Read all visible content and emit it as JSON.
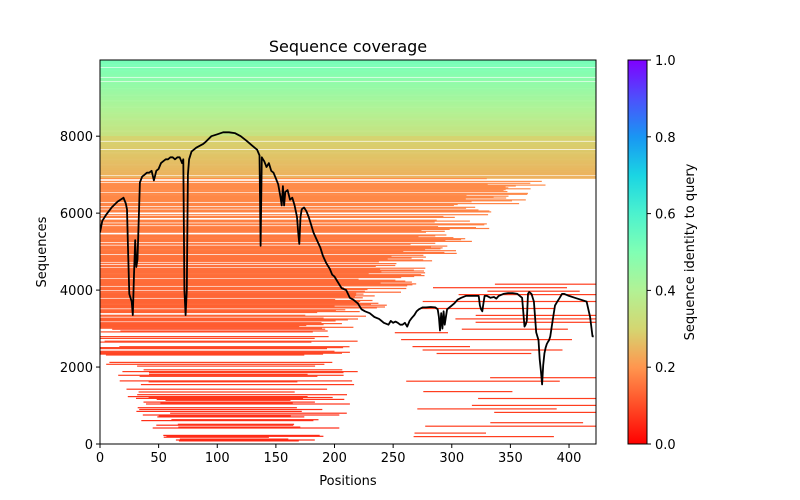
{
  "chart_data": {
    "type": "heatmap",
    "title": "Sequence coverage",
    "xlabel": "Positions",
    "ylabel": "Sequences",
    "xlim": [
      0,
      423
    ],
    "ylim": [
      0,
      9980
    ],
    "xticks": [
      0,
      50,
      100,
      150,
      200,
      250,
      300,
      350,
      400
    ],
    "yticks": [
      0,
      2000,
      4000,
      6000,
      8000
    ],
    "grid": false,
    "colorbar": {
      "label": "Sequence identity to query",
      "range": [
        0.0,
        1.0
      ],
      "ticks": [
        "0.0",
        "0.2",
        "0.4",
        "0.6",
        "0.8",
        "1.0"
      ],
      "colormap": "rainbow_r",
      "stops": [
        {
          "v": 0.0,
          "color": "#ff0000"
        },
        {
          "v": 0.1,
          "color": "#ff4d27"
        },
        {
          "v": 0.2,
          "color": "#ff964f"
        },
        {
          "v": 0.3,
          "color": "#d4d671"
        },
        {
          "v": 0.4,
          "color": "#b2f295"
        },
        {
          "v": 0.5,
          "color": "#80ffb4"
        },
        {
          "v": 0.6,
          "color": "#4cf2ce"
        },
        {
          "v": 0.7,
          "color": "#1ad5e3"
        },
        {
          "v": 0.8,
          "color": "#1996f3"
        },
        {
          "v": 0.9,
          "color": "#4d50fc"
        },
        {
          "v": 1.0,
          "color": "#8000ff"
        }
      ]
    },
    "identity_bands": [
      {
        "y_from": 8000,
        "y_to": 9980,
        "identity_from": 0.34,
        "identity_to": 0.52
      },
      {
        "y_from": 6900,
        "y_to": 8000,
        "identity_from": 0.24,
        "identity_to": 0.3
      },
      {
        "y_from": 3000,
        "y_to": 6900,
        "identity_from": 0.12,
        "identity_to": 0.19
      },
      {
        "y_from": 0,
        "y_to": 3000,
        "identity_from": 0.05,
        "identity_to": 0.1
      }
    ],
    "coverage_line": {
      "name": "coverage",
      "color": "#000000",
      "x": [
        0,
        2,
        5,
        10,
        15,
        20,
        22,
        23,
        24,
        25,
        26,
        27,
        28,
        29,
        30,
        31,
        32,
        34,
        36,
        38,
        40,
        42,
        44,
        46,
        48,
        50,
        52,
        54,
        56,
        58,
        60,
        62,
        64,
        66,
        68,
        70,
        71,
        72,
        73,
        74,
        75,
        76,
        78,
        80,
        82,
        85,
        88,
        90,
        95,
        100,
        105,
        110,
        115,
        120,
        125,
        130,
        134,
        136,
        137,
        138,
        139,
        140,
        142,
        144,
        146,
        148,
        150,
        152,
        154,
        155,
        156,
        157,
        158,
        160,
        162,
        164,
        166,
        168,
        169,
        170,
        171,
        172,
        174,
        176,
        178,
        180,
        182,
        185,
        188,
        190,
        193,
        196,
        198,
        200,
        203,
        206,
        210,
        213,
        216,
        220,
        223,
        226,
        230,
        234,
        238,
        242,
        246,
        248,
        250,
        252,
        254,
        256,
        258,
        260,
        262,
        264,
        266,
        268,
        270,
        272,
        275,
        278,
        282,
        286,
        288,
        289,
        290,
        291,
        292,
        293,
        294,
        296,
        298,
        300,
        302,
        305,
        308,
        312,
        316,
        320,
        323,
        324,
        325,
        326,
        327,
        328,
        330,
        333,
        336,
        338,
        340,
        344,
        348,
        352,
        356,
        360,
        362,
        363,
        364,
        365,
        366,
        368,
        370,
        372,
        374,
        375,
        376,
        377,
        378,
        379,
        380,
        381,
        382,
        383,
        384,
        386,
        388,
        390,
        392,
        394,
        396,
        400,
        405,
        410,
        415,
        418,
        420,
        421,
        422
      ],
      "y": [
        5500,
        5800,
        5950,
        6150,
        6300,
        6400,
        6250,
        6100,
        5000,
        3900,
        3800,
        3700,
        3350,
        4400,
        5300,
        4600,
        4800,
        6800,
        6950,
        7000,
        7050,
        7050,
        7100,
        6850,
        7100,
        7150,
        7300,
        7350,
        7400,
        7400,
        7450,
        7450,
        7400,
        7450,
        7450,
        7300,
        7400,
        4000,
        3350,
        4000,
        7000,
        7400,
        7600,
        7650,
        7700,
        7750,
        7800,
        7850,
        8000,
        8050,
        8100,
        8100,
        8080,
        8000,
        7880,
        7750,
        7650,
        7500,
        5150,
        7450,
        7400,
        7350,
        7200,
        7300,
        7100,
        7050,
        6900,
        6750,
        6400,
        6200,
        6700,
        6200,
        6550,
        6600,
        6350,
        6400,
        6200,
        5900,
        5500,
        5200,
        5900,
        6100,
        6150,
        6050,
        5900,
        5700,
        5500,
        5300,
        5100,
        4900,
        4700,
        4550,
        4400,
        4350,
        4200,
        4050,
        4000,
        3800,
        3750,
        3650,
        3500,
        3450,
        3400,
        3300,
        3250,
        3150,
        3100,
        3200,
        3150,
        3180,
        3150,
        3100,
        3100,
        3150,
        3050,
        3200,
        3280,
        3350,
        3450,
        3500,
        3550,
        3550,
        3560,
        3550,
        3500,
        3300,
        2950,
        3400,
        3000,
        3450,
        3100,
        3500,
        3550,
        3600,
        3650,
        3750,
        3800,
        3850,
        3850,
        3850,
        3850,
        3600,
        3500,
        3450,
        3650,
        3850,
        3850,
        3800,
        3820,
        3780,
        3850,
        3900,
        3920,
        3920,
        3900,
        3800,
        3050,
        3100,
        3200,
        3900,
        3950,
        3900,
        3700,
        2900,
        2700,
        2200,
        1900,
        1550,
        2050,
        2350,
        2500,
        2600,
        2650,
        2700,
        2800,
        3200,
        3600,
        3700,
        3800,
        3900,
        3900,
        3850,
        3800,
        3750,
        3700,
        3300,
        2800,
        2800
      ]
    }
  }
}
